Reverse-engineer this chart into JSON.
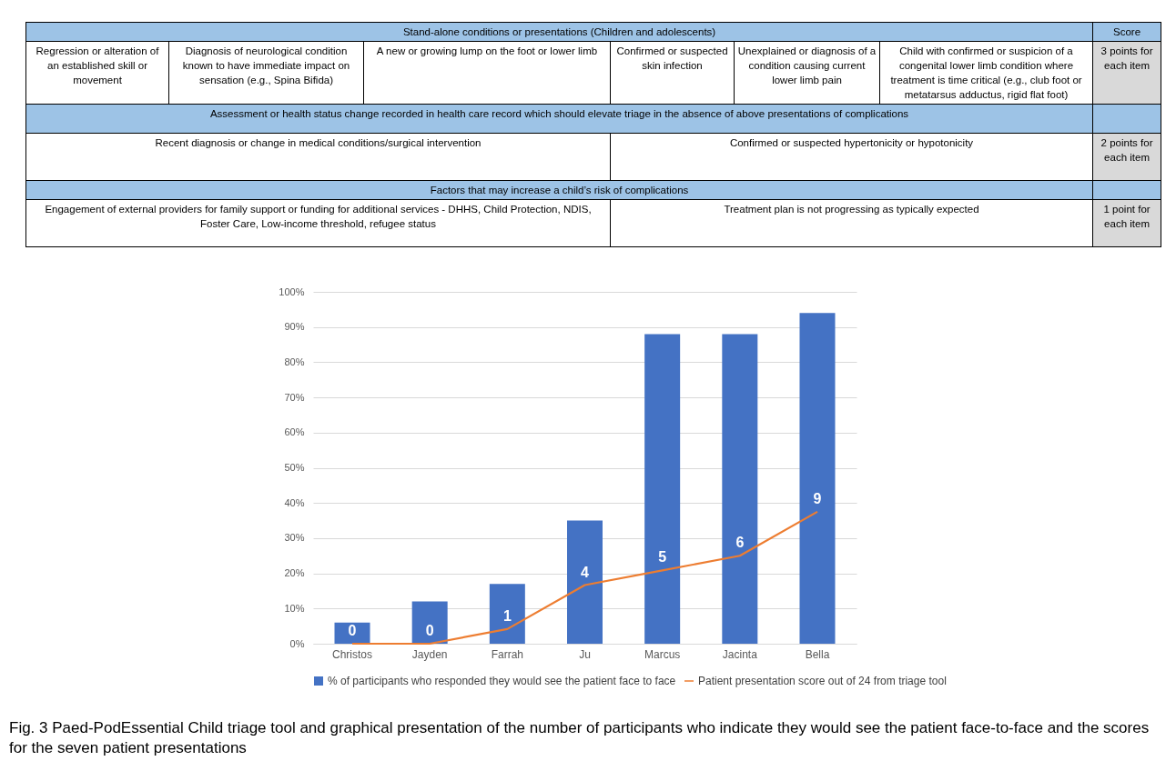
{
  "chart_data": [
    {
      "type": "other",
      "annotations": [
        "Stand-alone conditions or presentations (Children and adolescents)",
        "Score",
        "Regression or alteration of an established skill or movement",
        "Diagnosis of neurological condition known to have immediate impact on sensation (e.g., Spina Bifida)",
        "A new or growing lump on the foot or lower limb",
        "Confirmed or suspected skin infection",
        "Unexplained or diagnosis of a condition causing current lower limb pain",
        "Child with confirmed or suspicion of a congenital lower limb condition where treatment is time critical (e.g., club foot or metatarsus adductus, rigid flat foot)",
        "3 points for each item",
        "Assessment or health status change recorded in health care record which should elevate triage in the absence of above presentations of complications",
        "Recent diagnosis or change in medical conditions/surgical intervention",
        "Confirmed or suspected hypertonicity or hypotonicity",
        "2 points for each item",
        "Factors that may increase a child’s risk of complications",
        "Engagement of external providers for family support or funding for additional services - DHHS, Child Protection, NDIS, Foster Care, Low-income threshold, refugee status",
        "Treatment plan is not progressing as typically expected",
        "1 point for each item"
      ]
    },
    {
      "type": "bar",
      "categories": [
        "Christos",
        "Jayden",
        "Farrah",
        "Ju",
        "Marcus",
        "Jacinta",
        "Bella"
      ],
      "series": [
        {
          "type": "bar",
          "name": "% of participants who responded they would see the patient face to face",
          "color": "#4472c4",
          "values": [
            6,
            12,
            17,
            35,
            88,
            88,
            94
          ]
        },
        {
          "type": "line",
          "name": "Patient presentation score out of 24 from triage tool",
          "color": "#ed7d31",
          "axis": "y2",
          "values": [
            0,
            0,
            1,
            4,
            5,
            6,
            9
          ],
          "value_labels": [
            "0",
            "0",
            "1",
            "4",
            "5",
            "6",
            "9"
          ]
        }
      ],
      "ylim": [
        0,
        100
      ],
      "y2lim": [
        0,
        24
      ],
      "yticks": [
        {
          "value": 0,
          "label": "0%"
        },
        {
          "value": 10,
          "label": "10%"
        },
        {
          "value": 20,
          "label": "20%"
        },
        {
          "value": 30,
          "label": "30%"
        },
        {
          "value": 40,
          "label": "40%"
        },
        {
          "value": 50,
          "label": "50%"
        },
        {
          "value": 60,
          "label": "60%"
        },
        {
          "value": 70,
          "label": "70%"
        },
        {
          "value": 80,
          "label": "80%"
        },
        {
          "value": 90,
          "label": "90%"
        },
        {
          "value": 100,
          "label": "100%"
        }
      ],
      "grid": "y",
      "legend": "bottom",
      "annotations": [
        "Fig. 3 Paed-PodEssential Child triage tool and graphical presentation of the number of participants who indicate they would see the patient face-to-face and the scores for the seven patient presentations"
      ]
    }
  ]
}
